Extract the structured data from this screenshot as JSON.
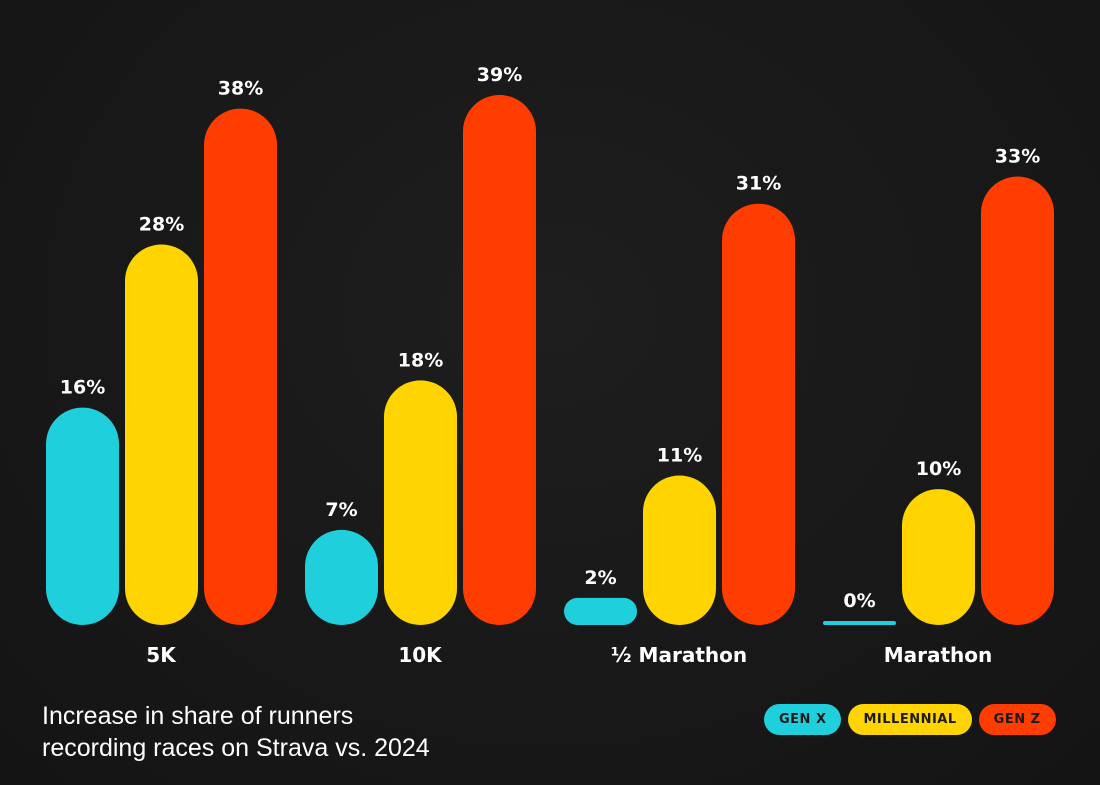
{
  "chart_data": {
    "type": "bar",
    "categories": [
      "5K",
      "10K",
      "½ Marathon",
      "Marathon"
    ],
    "series": [
      {
        "name": "GEN X",
        "color": "#1FD0DC",
        "values": [
          16,
          7,
          2,
          0
        ],
        "labels": [
          "16%",
          "7%",
          "2%",
          "0%"
        ]
      },
      {
        "name": "MILLENNIAL",
        "color": "#FFD400",
        "values": [
          28,
          18,
          11,
          10
        ],
        "labels": [
          "28%",
          "18%",
          "11%",
          "10%"
        ]
      },
      {
        "name": "GEN Z",
        "color": "#FF3D00",
        "values": [
          38,
          39,
          31,
          33
        ],
        "labels": [
          "38%",
          "39%",
          "31%",
          "33%"
        ]
      }
    ],
    "ylim": [
      0,
      39
    ],
    "legend_position": "bottom-right",
    "grid": false
  },
  "caption": {
    "line1": "Increase in share of runners",
    "line2": "recording races on Strava vs. 2024"
  }
}
